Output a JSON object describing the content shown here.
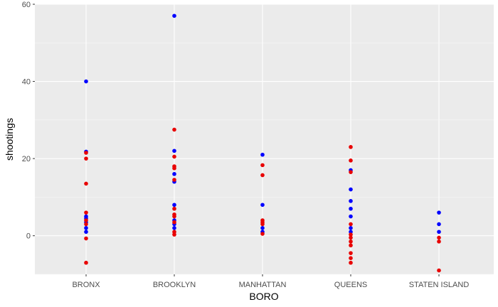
{
  "chart_data": {
    "type": "scatter",
    "title": "",
    "xlabel": "BORO",
    "ylabel": "shootings",
    "categories": [
      "BRONX",
      "BROOKLYN",
      "MANHATTAN",
      "QUEENS",
      "STATEN ISLAND"
    ],
    "ylim": [
      -10,
      60
    ],
    "yticks": [
      0,
      20,
      40,
      60
    ],
    "grid": true,
    "legend": "none",
    "series": [
      {
        "color": "#0000ff",
        "points": [
          {
            "x": "BRONX",
            "y": 40
          },
          {
            "x": "BRONX",
            "y": 21.8
          },
          {
            "x": "BRONX",
            "y": 5
          },
          {
            "x": "BRONX",
            "y": 4.5
          },
          {
            "x": "BRONX",
            "y": 3.5
          },
          {
            "x": "BRONX",
            "y": 2
          },
          {
            "x": "BRONX",
            "y": 1
          },
          {
            "x": "BROOKLYN",
            "y": 57
          },
          {
            "x": "BROOKLYN",
            "y": 22
          },
          {
            "x": "BROOKLYN",
            "y": 16
          },
          {
            "x": "BROOKLYN",
            "y": 14
          },
          {
            "x": "BROOKLYN",
            "y": 8
          },
          {
            "x": "BROOKLYN",
            "y": 4
          },
          {
            "x": "BROOKLYN",
            "y": 3
          },
          {
            "x": "BROOKLYN",
            "y": 2
          },
          {
            "x": "MANHATTAN",
            "y": 21
          },
          {
            "x": "MANHATTAN",
            "y": 8
          },
          {
            "x": "MANHATTAN",
            "y": 2
          },
          {
            "x": "MANHATTAN",
            "y": 1
          },
          {
            "x": "QUEENS",
            "y": 17
          },
          {
            "x": "QUEENS",
            "y": 12
          },
          {
            "x": "QUEENS",
            "y": 9
          },
          {
            "x": "QUEENS",
            "y": 7
          },
          {
            "x": "QUEENS",
            "y": 5
          },
          {
            "x": "QUEENS",
            "y": 2
          },
          {
            "x": "QUEENS",
            "y": 1
          },
          {
            "x": "STATEN ISLAND",
            "y": 6
          },
          {
            "x": "STATEN ISLAND",
            "y": 3
          },
          {
            "x": "STATEN ISLAND",
            "y": 1
          }
        ]
      },
      {
        "color": "#e80000",
        "points": [
          {
            "x": "BRONX",
            "y": 21.5
          },
          {
            "x": "BRONX",
            "y": 20
          },
          {
            "x": "BRONX",
            "y": 13.5
          },
          {
            "x": "BRONX",
            "y": 6
          },
          {
            "x": "BRONX",
            "y": 4
          },
          {
            "x": "BRONX",
            "y": 3
          },
          {
            "x": "BRONX",
            "y": -0.7
          },
          {
            "x": "BRONX",
            "y": -7
          },
          {
            "x": "BROOKLYN",
            "y": 27.5
          },
          {
            "x": "BROOKLYN",
            "y": 20.5
          },
          {
            "x": "BROOKLYN",
            "y": 18
          },
          {
            "x": "BROOKLYN",
            "y": 17.5
          },
          {
            "x": "BROOKLYN",
            "y": 14.5
          },
          {
            "x": "BROOKLYN",
            "y": 7
          },
          {
            "x": "BROOKLYN",
            "y": 5.5
          },
          {
            "x": "BROOKLYN",
            "y": 5
          },
          {
            "x": "BROOKLYN",
            "y": 3.5
          },
          {
            "x": "BROOKLYN",
            "y": 1
          },
          {
            "x": "BROOKLYN",
            "y": 0.3
          },
          {
            "x": "MANHATTAN",
            "y": 18.3
          },
          {
            "x": "MANHATTAN",
            "y": 15.7
          },
          {
            "x": "MANHATTAN",
            "y": 4
          },
          {
            "x": "MANHATTAN",
            "y": 3.5
          },
          {
            "x": "MANHATTAN",
            "y": 3
          },
          {
            "x": "MANHATTAN",
            "y": 0.5
          },
          {
            "x": "QUEENS",
            "y": 23
          },
          {
            "x": "QUEENS",
            "y": 19.5
          },
          {
            "x": "QUEENS",
            "y": 16.5
          },
          {
            "x": "QUEENS",
            "y": 3
          },
          {
            "x": "QUEENS",
            "y": 0.3
          },
          {
            "x": "QUEENS",
            "y": -0.5
          },
          {
            "x": "QUEENS",
            "y": -1.5
          },
          {
            "x": "QUEENS",
            "y": -2.5
          },
          {
            "x": "QUEENS",
            "y": -4.5
          },
          {
            "x": "QUEENS",
            "y": -5.8
          },
          {
            "x": "QUEENS",
            "y": -7
          },
          {
            "x": "STATEN ISLAND",
            "y": -0.5
          },
          {
            "x": "STATEN ISLAND",
            "y": -1.5
          },
          {
            "x": "STATEN ISLAND",
            "y": -9
          }
        ]
      }
    ]
  }
}
